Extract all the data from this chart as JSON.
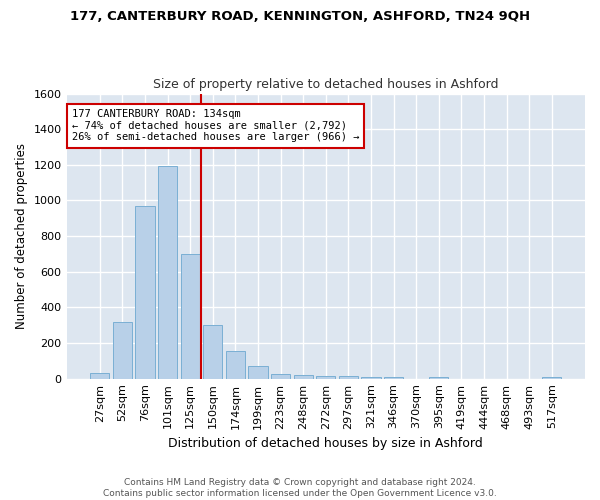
{
  "title1": "177, CANTERBURY ROAD, KENNINGTON, ASHFORD, TN24 9QH",
  "title2": "Size of property relative to detached houses in Ashford",
  "xlabel": "Distribution of detached houses by size in Ashford",
  "ylabel": "Number of detached properties",
  "categories": [
    "27sqm",
    "52sqm",
    "76sqm",
    "101sqm",
    "125sqm",
    "150sqm",
    "174sqm",
    "199sqm",
    "223sqm",
    "248sqm",
    "272sqm",
    "297sqm",
    "321sqm",
    "346sqm",
    "370sqm",
    "395sqm",
    "419sqm",
    "444sqm",
    "468sqm",
    "493sqm",
    "517sqm"
  ],
  "values": [
    30,
    320,
    970,
    1195,
    700,
    300,
    155,
    70,
    25,
    20,
    15,
    15,
    10,
    8,
    0,
    8,
    0,
    0,
    0,
    0,
    10
  ],
  "bar_color": "#b8d0e8",
  "bar_edgecolor": "#7aafd4",
  "vline_color": "#cc0000",
  "annotation_text": "177 CANTERBURY ROAD: 134sqm\n← 74% of detached houses are smaller (2,792)\n26% of semi-detached houses are larger (966) →",
  "annotation_box_facecolor": "#ffffff",
  "annotation_box_edgecolor": "#cc0000",
  "ylim": [
    0,
    1600
  ],
  "yticks": [
    0,
    200,
    400,
    600,
    800,
    1000,
    1200,
    1400,
    1600
  ],
  "bg_color": "#dde6f0",
  "grid_color": "#ffffff",
  "figure_bg": "#ffffff",
  "footer": "Contains HM Land Registry data © Crown copyright and database right 2024.\nContains public sector information licensed under the Open Government Licence v3.0."
}
